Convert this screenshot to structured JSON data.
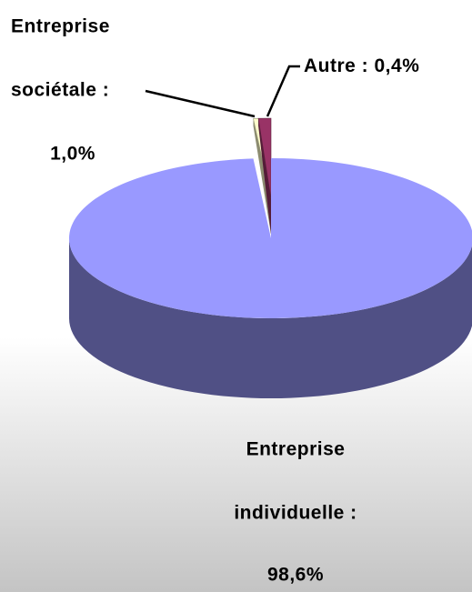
{
  "chart_data": {
    "type": "pie3d",
    "categories": [
      "Entreprise individuelle :",
      "Entreprise sociétale :",
      "Autre :"
    ],
    "values": [
      98.6,
      1.0,
      0.4
    ],
    "value_labels": [
      "98,6%",
      "1,0%",
      "0,4%"
    ],
    "colors": [
      "#9999ff",
      "#993366",
      "#ffffcc"
    ]
  }
}
